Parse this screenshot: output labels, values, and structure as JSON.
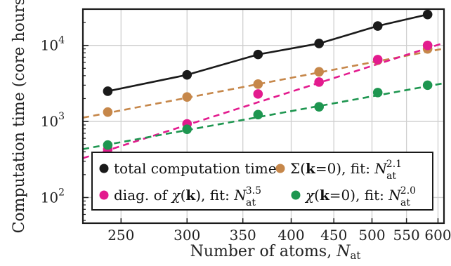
{
  "chart_data": {
    "type": "scatter",
    "xscale": "log",
    "yscale": "log",
    "xlim": [
      225,
      610
    ],
    "ylim": [
      46,
      30000
    ],
    "grid": true,
    "legend_position": "lower-right",
    "xlabel": {
      "text": "Number of atoms, ",
      "sym": "N",
      "sub": "at"
    },
    "ylabel": "Computation time (core hours)",
    "x_ticks": [
      250,
      300,
      350,
      400,
      450,
      500,
      550,
      600
    ],
    "y_ticks": [
      {
        "value": 100,
        "base": "10",
        "exp": "2"
      },
      {
        "value": 1000,
        "base": "10",
        "exp": "3"
      },
      {
        "value": 10000,
        "base": "10",
        "exp": "4"
      }
    ],
    "series": [
      {
        "name": "total computation time",
        "color": "#1a1a1a",
        "style": "markers+line",
        "x": [
          241,
          300,
          365,
          432,
          508,
          583
        ],
        "y": [
          2500,
          4100,
          7600,
          10600,
          18000,
          25500
        ]
      },
      {
        "name_parts": [
          "Σ(",
          "k",
          "=0), fit: "
        ],
        "fit_exp": "2.1",
        "color": "#c6874a",
        "style": "markers+fit",
        "x": [
          241,
          300,
          365,
          432,
          508,
          583
        ],
        "y": [
          1330,
          2100,
          3100,
          4500,
          6400,
          9000
        ],
        "fit": {
          "exponent": 2.1,
          "x_range": [
            225,
            610
          ],
          "anchor_x": 300,
          "anchor_y": 2050
        }
      },
      {
        "name_parts": [
          "diag. of ",
          "χ",
          "(",
          "k",
          "), fit: "
        ],
        "fit_exp": "3.5",
        "color": "#e31b8e",
        "style": "markers+fit",
        "x": [
          241,
          300,
          365,
          432,
          508,
          583
        ],
        "y": [
          430,
          930,
          2300,
          3300,
          6500,
          10000
        ],
        "fit": {
          "exponent": 3.5,
          "x_range": [
            225,
            610
          ],
          "anchor_x": 300,
          "anchor_y": 900
        }
      },
      {
        "name_parts": [
          "χ",
          "(",
          "k",
          "=0), fit: "
        ],
        "fit_exp": "2.0",
        "color": "#1e9650",
        "style": "markers+fit",
        "x": [
          241,
          300,
          365,
          432,
          508,
          583
        ],
        "y": [
          490,
          790,
          1230,
          1560,
          2400,
          3000
        ],
        "fit": {
          "exponent": 2.0,
          "x_range": [
            225,
            610
          ],
          "anchor_x": 300,
          "anchor_y": 770
        }
      }
    ],
    "legend_fit_symbol": {
      "sym": "N",
      "sub": "at"
    }
  }
}
